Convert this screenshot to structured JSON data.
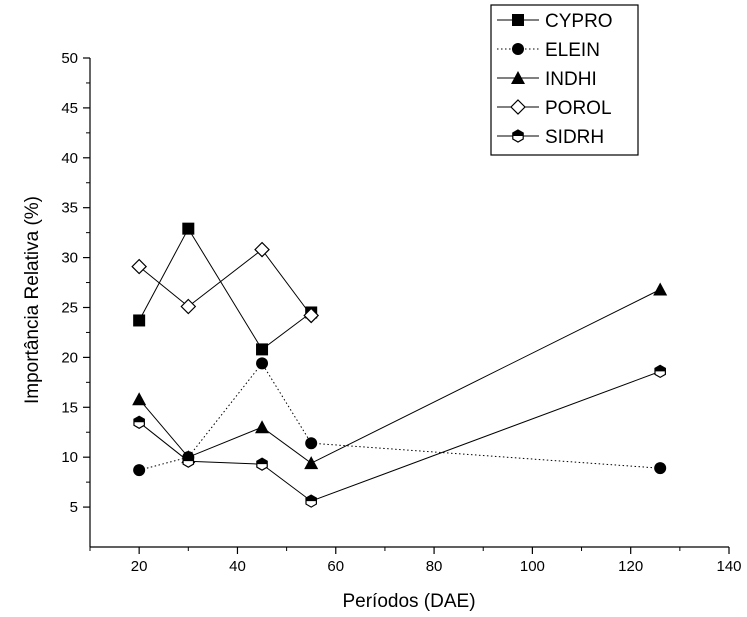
{
  "chart_data": {
    "type": "line",
    "xlabel": "Períodos (DAE)",
    "ylabel": "Importância Relativa (%)",
    "xlim": [
      10,
      140
    ],
    "ylim": [
      5,
      50
    ],
    "x_ticks": [
      20,
      40,
      60,
      80,
      100,
      120,
      140
    ],
    "y_ticks": [
      5,
      10,
      15,
      20,
      25,
      30,
      35,
      40,
      45,
      50
    ],
    "grid": false,
    "legend_position": "top-right",
    "series": [
      {
        "name": "CYPRO",
        "marker": "square-filled",
        "line": "solid",
        "x": [
          20,
          30,
          45,
          55
        ],
        "values": [
          23.7,
          32.9,
          20.8,
          24.5
        ]
      },
      {
        "name": "ELEIN",
        "marker": "circle-filled",
        "line": "dotted",
        "x": [
          20,
          30,
          45,
          55,
          126
        ],
        "values": [
          8.7,
          10.0,
          19.4,
          11.4,
          8.9
        ]
      },
      {
        "name": "INDHI",
        "marker": "triangle-filled",
        "line": "solid",
        "x": [
          20,
          30,
          45,
          55,
          126
        ],
        "values": [
          15.8,
          10.0,
          13.0,
          9.4,
          26.8
        ]
      },
      {
        "name": "POROL",
        "marker": "diamond-open",
        "line": "solid",
        "x": [
          20,
          30,
          45,
          55
        ],
        "values": [
          29.1,
          25.1,
          30.8,
          24.2
        ]
      },
      {
        "name": "SIDRH",
        "marker": "hexagon-half",
        "line": "solid",
        "x": [
          20,
          30,
          45,
          55,
          126
        ],
        "values": [
          13.5,
          9.6,
          9.3,
          5.6,
          18.6
        ]
      }
    ]
  }
}
